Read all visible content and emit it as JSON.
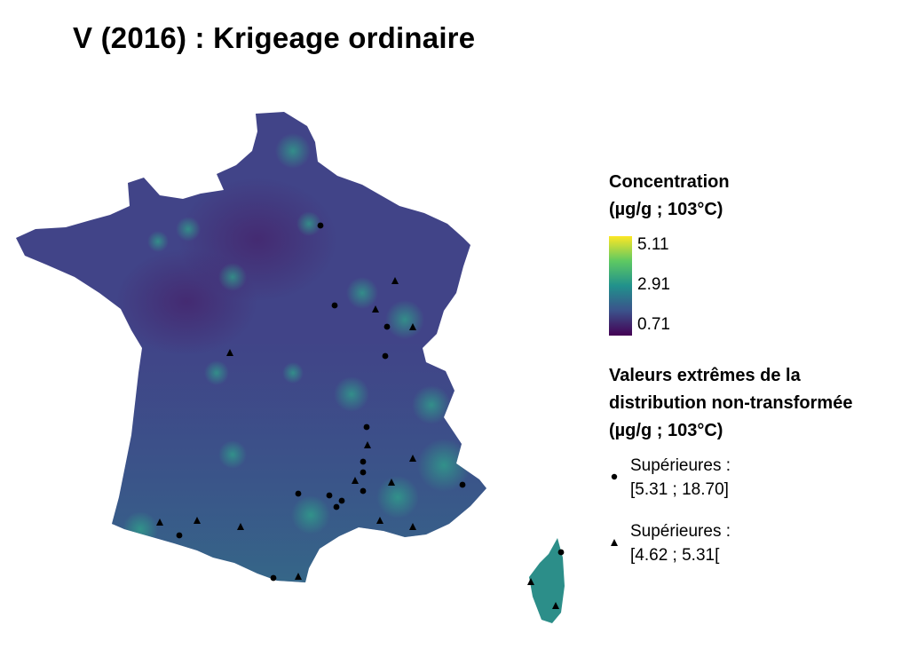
{
  "title": "V (2016) : Krigeage ordinaire",
  "legend": {
    "concentration_title_line1": "Concentration",
    "concentration_title_line2": "(µg/g ; 103°C)",
    "scale": {
      "max": "5.11",
      "mid": "2.91",
      "min": "0.71",
      "palette": [
        "#fde725",
        "#5ec962",
        "#21918c",
        "#3b528b",
        "#440154"
      ]
    },
    "extremes_title_line1": "Valeurs extrêmes de la",
    "extremes_title_line2": "distribution non-transformée",
    "extremes_title_line3": "(µg/g ; 103°C)",
    "items": [
      {
        "symbol": "circle-icon",
        "line1": "Supérieures :",
        "line2": "[5.31 ; 18.70]"
      },
      {
        "symbol": "triangle-icon",
        "line1": "Supérieures :",
        "line2": "[4.62 ; 5.31["
      }
    ]
  },
  "map": {
    "region": "France",
    "method": "Krigeage ordinaire",
    "year": "2016",
    "element": "V"
  }
}
